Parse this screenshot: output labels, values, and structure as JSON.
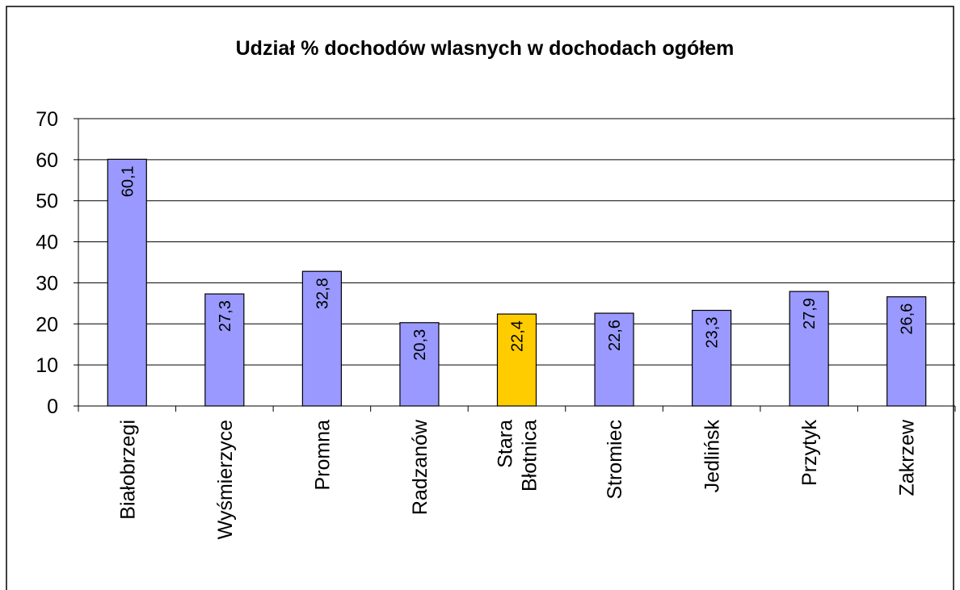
{
  "chart_data": {
    "type": "bar",
    "title": "Udział % dochodów wlasnych  w dochodach ogółem",
    "categories": [
      "Białobrzegi",
      "Wyśmierzyce",
      "Promna",
      "Radzanów",
      "Stara Błotnica",
      "Stromiec",
      "Jedlińsk",
      "Przytyk",
      "Zakrzew"
    ],
    "values": [
      60.1,
      27.3,
      32.8,
      20.3,
      22.4,
      22.6,
      23.3,
      27.9,
      26.6
    ],
    "value_labels": [
      "60,1",
      "27,3",
      "32,8",
      "20,3",
      "22,4",
      "22,6",
      "23,3",
      "27,9",
      "26,6"
    ],
    "colors": [
      "#9999ff",
      "#9999ff",
      "#9999ff",
      "#9999ff",
      "#ffcc00",
      "#9999ff",
      "#9999ff",
      "#9999ff",
      "#9999ff"
    ],
    "ylim": [
      0,
      70
    ],
    "yticks": [
      0,
      10,
      20,
      30,
      40,
      50,
      60,
      70
    ],
    "grid": true
  }
}
